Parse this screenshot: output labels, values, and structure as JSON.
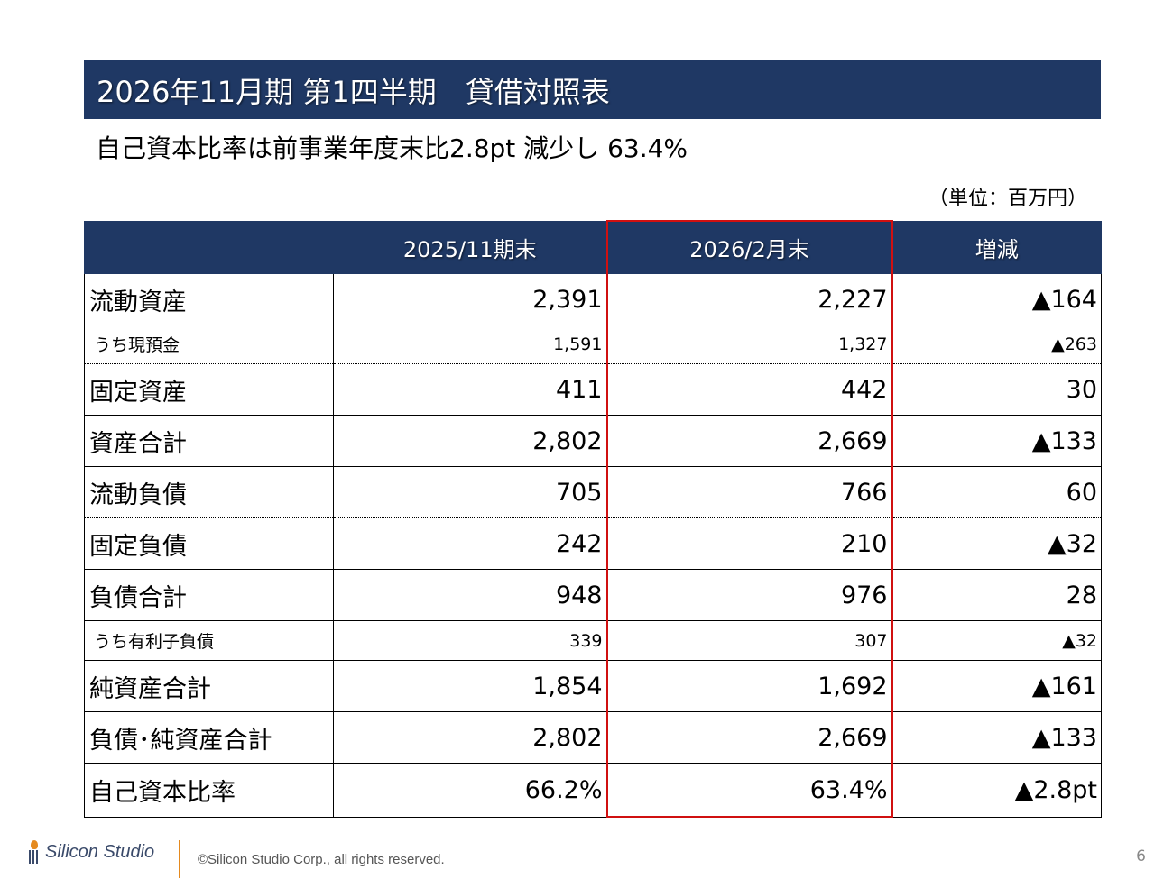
{
  "title": "2026年11月期 第1四半期　貸借対照表",
  "subtitle": "自己資本比率は前事業年度末比2.8pt 減少し 63.4%",
  "unit": "（単位：百万円）",
  "table": {
    "headers": [
      "",
      "2025/11期末",
      "2026/2月末",
      "増減"
    ],
    "rows": [
      {
        "label": "流動資産",
        "prev": "2,391",
        "curr": "2,227",
        "diff": "▲164"
      },
      {
        "label": "うち現預金",
        "prev": "1,591",
        "curr": "1,327",
        "diff": "▲263"
      },
      {
        "label": "固定資産",
        "prev": "411",
        "curr": "442",
        "diff": "30"
      },
      {
        "label": "資産合計",
        "prev": "2,802",
        "curr": "2,669",
        "diff": "▲133"
      },
      {
        "label": "流動負債",
        "prev": "705",
        "curr": "766",
        "diff": "60"
      },
      {
        "label": "固定負債",
        "prev": "242",
        "curr": "210",
        "diff": "▲32"
      },
      {
        "label": "負債合計",
        "prev": "948",
        "curr": "976",
        "diff": "28"
      },
      {
        "label": "うち有利子負債",
        "prev": "339",
        "curr": "307",
        "diff": "▲32"
      },
      {
        "label": "純資産合計",
        "prev": "1,854",
        "curr": "1,692",
        "diff": "▲161"
      },
      {
        "label": "負債･純資産合計",
        "prev": "2,802",
        "curr": "2,669",
        "diff": "▲133"
      },
      {
        "label": "自己資本比率",
        "prev": "66.2%",
        "curr": "63.4%",
        "diff": "▲2.8pt"
      }
    ]
  },
  "footer": {
    "logo_text": "Silicon Studio",
    "copyright": "©Silicon Studio Corp., all rights reserved.",
    "page_number": "6"
  },
  "colors": {
    "header_navy": "#1f3864",
    "highlight_red": "#d01010",
    "logo_orange": "#e58a1f"
  }
}
